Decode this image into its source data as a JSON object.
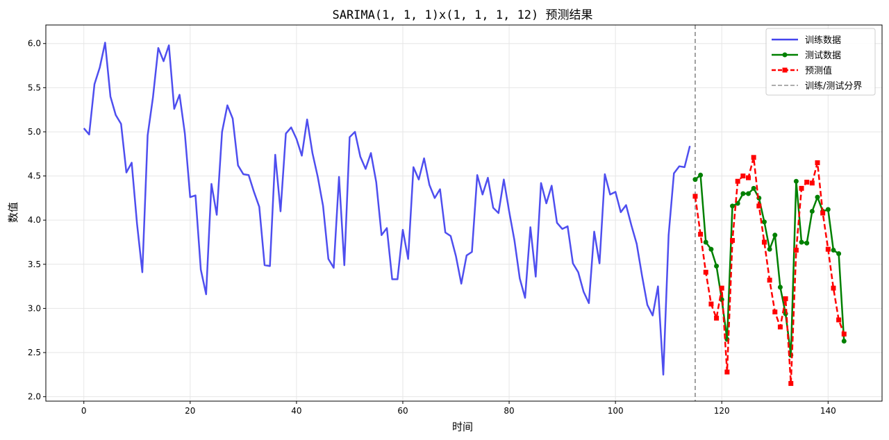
{
  "chart_data": {
    "type": "line",
    "title": "SARIMA(1, 1, 1)x(1, 1, 1, 12) 预测结果",
    "xlabel": "时间",
    "ylabel": "数值",
    "xlim": [
      -7.15,
      150.15
    ],
    "ylim": [
      1.95,
      6.21
    ],
    "xticks": [
      0,
      20,
      40,
      60,
      80,
      100,
      120,
      140
    ],
    "yticks": [
      2.0,
      2.5,
      3.0,
      3.5,
      4.0,
      4.5,
      5.0,
      5.5,
      6.0
    ],
    "grid": true,
    "legend_position": "top-right",
    "split_x": 115,
    "series": [
      {
        "name": "训练数据",
        "color": "#4444ee",
        "style": "solid",
        "marker": "none",
        "x_start": 0,
        "values": [
          5.04,
          4.97,
          5.54,
          5.73,
          6.01,
          5.4,
          5.19,
          5.09,
          4.54,
          4.65,
          3.96,
          3.41,
          4.96,
          5.39,
          5.95,
          5.8,
          5.98,
          5.26,
          5.42,
          4.98,
          4.26,
          4.28,
          3.44,
          3.16,
          4.41,
          4.06,
          5.0,
          5.3,
          5.15,
          4.62,
          4.52,
          4.51,
          4.32,
          4.15,
          3.49,
          3.48,
          4.74,
          4.1,
          4.98,
          5.05,
          4.92,
          4.73,
          5.14,
          4.76,
          4.49,
          4.16,
          3.56,
          3.46,
          4.49,
          3.49,
          4.94,
          5.0,
          4.72,
          4.58,
          4.76,
          4.43,
          3.83,
          3.91,
          3.33,
          3.33,
          3.89,
          3.56,
          4.6,
          4.46,
          4.7,
          4.4,
          4.25,
          4.35,
          3.86,
          3.82,
          3.59,
          3.28,
          3.6,
          3.64,
          4.51,
          4.29,
          4.48,
          4.14,
          4.08,
          4.46,
          4.1,
          3.77,
          3.34,
          3.12,
          3.92,
          3.36,
          4.42,
          4.19,
          4.39,
          3.97,
          3.9,
          3.93,
          3.51,
          3.41,
          3.19,
          3.06,
          3.87,
          3.51,
          4.52,
          4.29,
          4.32,
          4.09,
          4.17,
          3.94,
          3.73,
          3.37,
          3.04,
          2.92,
          3.25,
          2.25,
          3.83,
          4.53,
          4.61,
          4.6,
          4.84
        ]
      },
      {
        "name": "测试数据",
        "color": "#008000",
        "style": "solid",
        "marker": "circle",
        "x_start": 115,
        "values": [
          4.46,
          4.51,
          3.75,
          3.67,
          3.48,
          3.1,
          2.65,
          4.16,
          4.19,
          4.3,
          4.3,
          4.36,
          4.25,
          3.98,
          3.67,
          3.83,
          3.24,
          2.94,
          2.47,
          4.44,
          3.75,
          3.74,
          4.1,
          4.26,
          4.1,
          4.12,
          3.66,
          3.62,
          2.63
        ]
      },
      {
        "name": "预测值",
        "color": "#ff0000",
        "style": "dashed",
        "marker": "square",
        "x_start": 115,
        "values": [
          4.27,
          3.84,
          3.41,
          3.05,
          2.89,
          3.23,
          2.28,
          3.77,
          4.44,
          4.5,
          4.48,
          4.71,
          4.16,
          3.75,
          3.32,
          2.96,
          2.79,
          3.11,
          2.15,
          3.66,
          4.36,
          4.43,
          4.42,
          4.65,
          4.08,
          3.67,
          3.23,
          2.87,
          2.71
        ]
      },
      {
        "name": "训练/测试分界",
        "color": "#a0a0a0",
        "style": "dashed",
        "marker": "none"
      }
    ]
  }
}
